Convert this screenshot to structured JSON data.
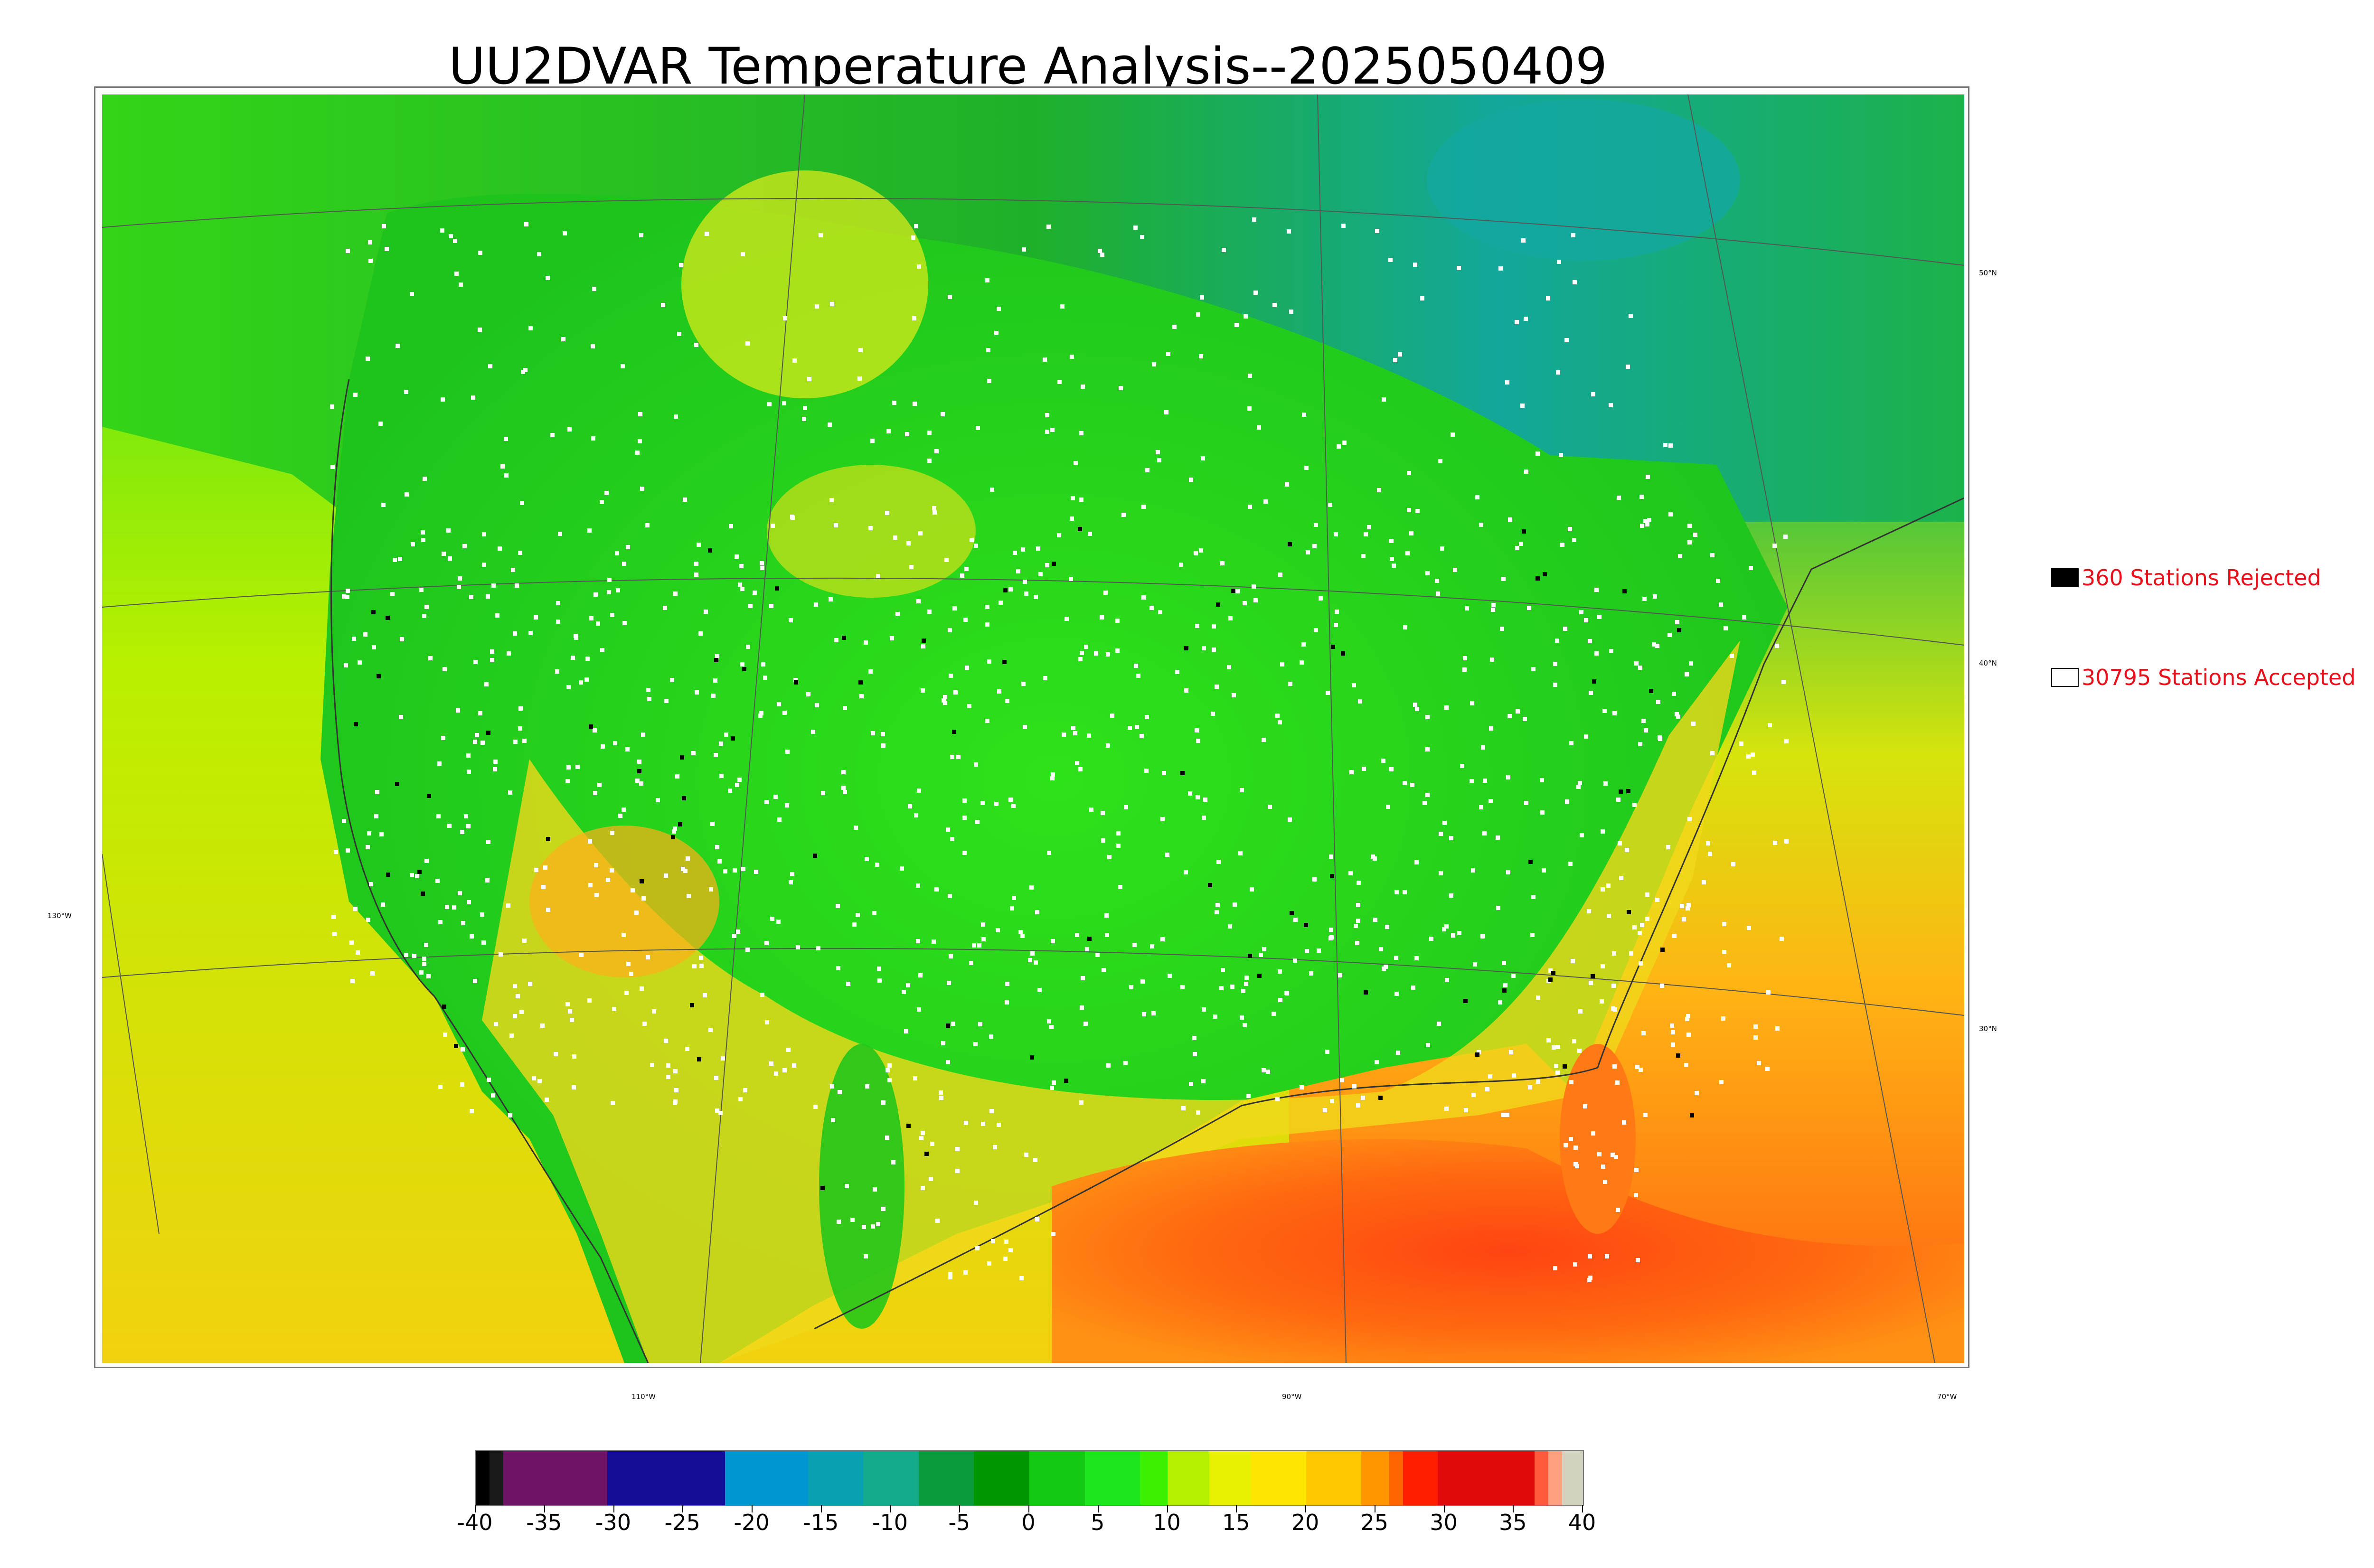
{
  "title": "UU2DVAR Temperature Analysis--2025050409",
  "map": {
    "lat_labels": [
      "50°N",
      "40°N",
      "30°N"
    ],
    "lon_labels": [
      "130°W",
      "110°W",
      "90°W",
      "70°W"
    ],
    "colors": {
      "ocean_cool": "#b9f000",
      "land_green": "#22c61a",
      "land_bright": "#28ee10",
      "north_cool": "#1faa5a",
      "canada_teal": "#12a79a",
      "warm_yellow": "#f0e21a",
      "gulf_orange": "#ff7a10",
      "gulf_red": "#ff3c10",
      "atlantic_orange": "#ffa015",
      "pacific_yellow": "#d9ec10",
      "station_accepted": "#ffffff",
      "station_rejected": "#000000"
    }
  },
  "legend": {
    "rejected_label": "360 Stations Rejected",
    "accepted_label": "30795 Stations Accepted",
    "rejected_color": "#000000",
    "accepted_color": "#ffffff",
    "text_color": "#e8101a"
  },
  "colorbar": {
    "min": -40,
    "max": 40,
    "tick_labels": [
      "-40",
      "-35",
      "-30",
      "-25",
      "-20",
      "-15",
      "-10",
      "-5",
      "0",
      "5",
      "10",
      "15",
      "20",
      "25",
      "30",
      "35",
      "40"
    ],
    "segments": [
      {
        "from": -40,
        "to": -39,
        "color": "#000000"
      },
      {
        "from": -39,
        "to": -38,
        "color": "#1a1a1a"
      },
      {
        "from": -38,
        "to": -30.5,
        "color": "#6e1266"
      },
      {
        "from": -30.5,
        "to": -22,
        "color": "#140c96"
      },
      {
        "from": -22,
        "to": -16,
        "color": "#0096d2"
      },
      {
        "from": -16,
        "to": -12,
        "color": "#0aa0b4"
      },
      {
        "from": -12,
        "to": -8,
        "color": "#14aa8c"
      },
      {
        "from": -8,
        "to": -4,
        "color": "#0a9a3c"
      },
      {
        "from": -4,
        "to": 0,
        "color": "#009600"
      },
      {
        "from": 0,
        "to": 4,
        "color": "#14c814"
      },
      {
        "from": 4,
        "to": 8,
        "color": "#1ee61e"
      },
      {
        "from": 8,
        "to": 10,
        "color": "#3cf000"
      },
      {
        "from": 10,
        "to": 13,
        "color": "#b4f000"
      },
      {
        "from": 13,
        "to": 16,
        "color": "#e6f000"
      },
      {
        "from": 16,
        "to": 20,
        "color": "#ffe600"
      },
      {
        "from": 20,
        "to": 24,
        "color": "#ffc800"
      },
      {
        "from": 24,
        "to": 26,
        "color": "#ff9600"
      },
      {
        "from": 26,
        "to": 27,
        "color": "#ff6400"
      },
      {
        "from": 27,
        "to": 29.5,
        "color": "#ff1e00"
      },
      {
        "from": 29.5,
        "to": 36.5,
        "color": "#e10a0a"
      },
      {
        "from": 36.5,
        "to": 37.5,
        "color": "#ff5a3c"
      },
      {
        "from": 37.5,
        "to": 38.5,
        "color": "#ffa082"
      },
      {
        "from": 38.5,
        "to": 40,
        "color": "#d2d2be"
      }
    ]
  }
}
